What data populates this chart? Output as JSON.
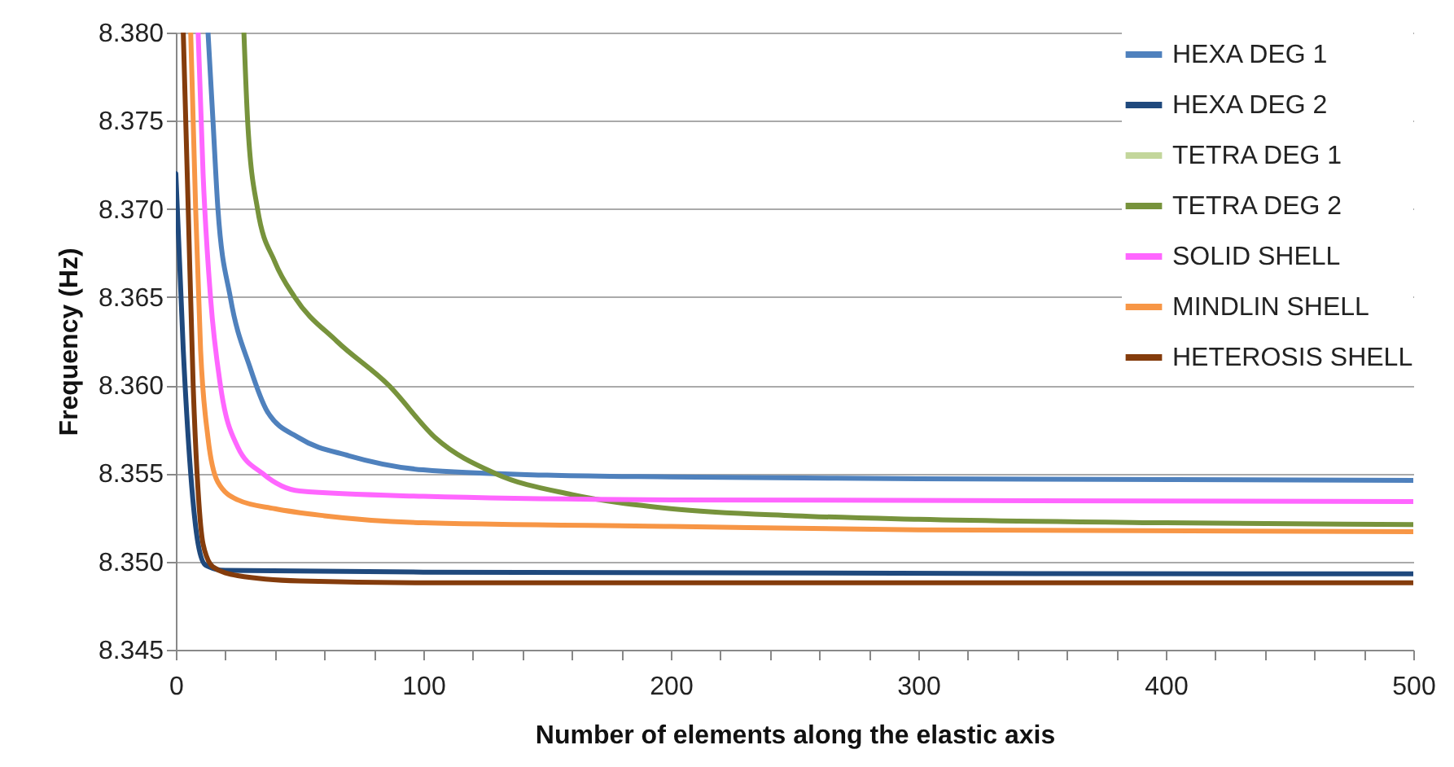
{
  "chart_data": {
    "type": "line",
    "xlabel": "Number of elements along the elastic axis",
    "ylabel": "Frequency (Hz)",
    "xlim": [
      0,
      500
    ],
    "xticks": [
      0,
      {
        "value": 20,
        "label": null
      },
      {
        "value": 40,
        "label": null
      },
      {
        "value": 60,
        "label": null
      },
      {
        "value": 80,
        "label": null
      },
      100,
      {
        "value": 120,
        "label": null
      },
      {
        "value": 140,
        "label": null
      },
      {
        "value": 160,
        "label": null
      },
      {
        "value": 180,
        "label": null
      },
      200,
      {
        "value": 220,
        "label": null
      },
      {
        "value": 240,
        "label": null
      },
      {
        "value": 260,
        "label": null
      },
      {
        "value": 280,
        "label": null
      },
      300,
      {
        "value": 320,
        "label": null
      },
      {
        "value": 340,
        "label": null
      },
      {
        "value": 360,
        "label": null
      },
      {
        "value": 380,
        "label": null
      },
      400,
      {
        "value": 420,
        "label": null
      },
      {
        "value": 440,
        "label": null
      },
      {
        "value": 460,
        "label": null
      },
      {
        "value": 480,
        "label": null
      },
      500
    ],
    "ylim": [
      8.345,
      8.38
    ],
    "yticks": [
      8.345,
      {
        "value": 8.35,
        "label": "8.350"
      },
      8.355,
      {
        "value": 8.36,
        "label": "8.360"
      },
      8.365,
      {
        "value": 8.37,
        "label": "8.370"
      },
      8.375,
      {
        "value": 8.38,
        "label": "8.380"
      }
    ],
    "grid": "y",
    "legend": "top right",
    "marker": "none",
    "line_style": "solid",
    "series": [
      {
        "name": "HEXA DEG 1",
        "color": "#4f81bd",
        "x": [
          13,
          15,
          17,
          22,
          30,
          37,
          50,
          70,
          100,
          150,
          200,
          300,
          500
        ],
        "values": [
          8.38,
          8.375,
          8.37,
          8.365,
          8.361,
          8.3585,
          8.357,
          8.356,
          8.3552,
          8.3549,
          8.3548,
          8.3547,
          8.3546
        ]
      },
      {
        "name": "HEXA DEG 2",
        "color": "#1f497d",
        "x": [
          0,
          3,
          6,
          9,
          12,
          20,
          100,
          500
        ],
        "values": [
          8.372,
          8.362,
          8.355,
          8.351,
          8.3498,
          8.3495,
          8.3494,
          8.3493
        ]
      },
      {
        "name": "TETRA DEG 1",
        "color": "#c3d69b"
      },
      {
        "name": "TETRA DEG 2",
        "color": "#77933c",
        "x": [
          27.5,
          29,
          33,
          40,
          48,
          65,
          86,
          105,
          129,
          160,
          200,
          250,
          300,
          400,
          500
        ],
        "values": [
          8.38,
          8.375,
          8.37,
          8.367,
          8.365,
          8.3625,
          8.36,
          8.357,
          8.355,
          8.3538,
          8.353,
          8.3526,
          8.3524,
          8.3522,
          8.3521
        ]
      },
      {
        "name": "SOLID SHELL",
        "color": "#ff66ff",
        "x": [
          9,
          11,
          14,
          18,
          25,
          35,
          50,
          100,
          200,
          500
        ],
        "values": [
          8.38,
          8.372,
          8.365,
          8.36,
          8.3565,
          8.355,
          8.354,
          8.3537,
          8.3535,
          8.3534
        ]
      },
      {
        "name": "MINDLIN SHELL",
        "color": "#f79646",
        "x": [
          6,
          8,
          10,
          13,
          17,
          25,
          40,
          60,
          100,
          200,
          300,
          500
        ],
        "values": [
          8.38,
          8.37,
          8.362,
          8.357,
          8.3545,
          8.3535,
          8.353,
          8.3526,
          8.3522,
          8.352,
          8.3518,
          8.3517
        ]
      },
      {
        "name": "HETEROSIS SHELL",
        "color": "#843c0c",
        "x": [
          3,
          5,
          7,
          9,
          11,
          15,
          25,
          50,
          100,
          500
        ],
        "values": [
          8.38,
          8.37,
          8.36,
          8.354,
          8.351,
          8.3497,
          8.3492,
          8.3489,
          8.3488,
          8.3488
        ]
      }
    ]
  }
}
